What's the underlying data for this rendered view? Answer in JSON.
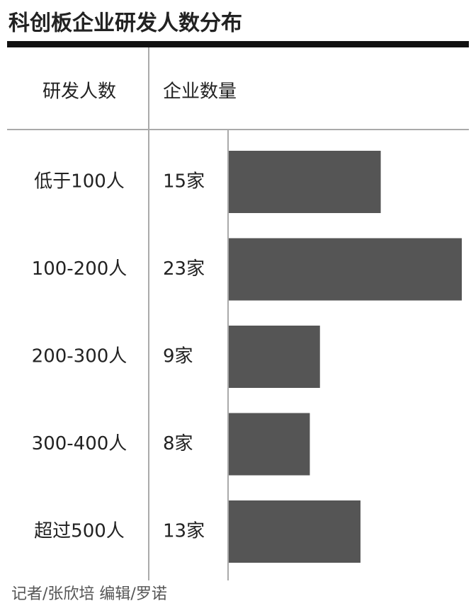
{
  "chart_data": {
    "type": "bar",
    "title": "科创板企业研发人数分布",
    "category_header": "研发人数",
    "value_header": "企业数量",
    "categories": [
      "低于100人",
      "100-200人",
      "200-300人",
      "300-400人",
      "超过500人"
    ],
    "values": [
      15,
      23,
      9,
      8,
      13
    ],
    "value_labels": [
      "15家",
      "23家",
      "9家",
      "8家",
      "13家"
    ],
    "color": "#555555",
    "credit": "记者/张欣培  编辑/罗诺"
  }
}
